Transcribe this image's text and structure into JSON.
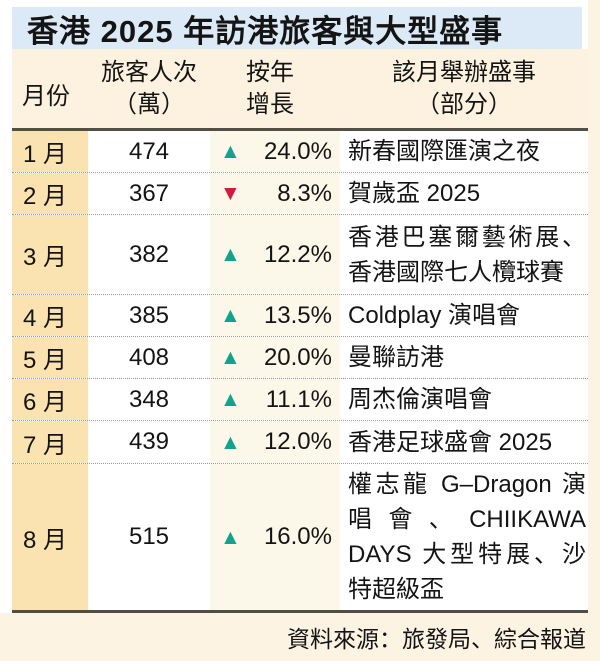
{
  "title": "香港 2025 年訪港旅客與大型盛事",
  "header": {
    "month": "月份",
    "visitors": [
      "旅客人次",
      "（萬）"
    ],
    "growth": [
      "按年",
      "增長"
    ],
    "events": [
      "該月舉辦盛事",
      "（部分）"
    ]
  },
  "rows": [
    {
      "month": "1 月",
      "visitors": "474",
      "arrow": "▲",
      "direction": "up",
      "growth": "24.0%",
      "events": "新春國際匯演之夜"
    },
    {
      "month": "2 月",
      "visitors": "367",
      "arrow": "▼",
      "direction": "down",
      "growth": "8.3%",
      "events": "賀歲盃 2025"
    },
    {
      "month": "3 月",
      "visitors": "382",
      "arrow": "▲",
      "direction": "up",
      "growth": "12.2%",
      "events": "香港巴塞爾藝術展、香港國際七人欖球賽"
    },
    {
      "month": "4 月",
      "visitors": "385",
      "arrow": "▲",
      "direction": "up",
      "growth": "13.5%",
      "events": "Coldplay 演唱會"
    },
    {
      "month": "5 月",
      "visitors": "408",
      "arrow": "▲",
      "direction": "up",
      "growth": "20.0%",
      "events": "曼聯訪港"
    },
    {
      "month": "6 月",
      "visitors": "348",
      "arrow": "▲",
      "direction": "up",
      "growth": "11.1%",
      "events": "周杰倫演唱會"
    },
    {
      "month": "7 月",
      "visitors": "439",
      "arrow": "▲",
      "direction": "up",
      "growth": "12.0%",
      "events": "香港足球盛會 2025"
    },
    {
      "month": "8 月",
      "visitors": "515",
      "arrow": "▲",
      "direction": "up",
      "growth": "16.0%",
      "events": "權志龍 G–Dragon 演唱會、CHIIKAWA DAYS 大型特展、沙特超級盃"
    }
  ],
  "footer": {
    "source": "資料來源：旅發局、綜合報道"
  },
  "colors": {
    "title_bg": "#dbeaf6",
    "header_bg": "#fcf2df",
    "month_col_bg": "#fae3b0",
    "growth_col_bg": "#fbf7e9",
    "footer_bg": "#fcf3e3",
    "up_arrow": "#12a38f",
    "down_arrow": "#d31b3e",
    "rule": "#514f46"
  },
  "chart_data": {
    "type": "table",
    "title": "香港 2025 年訪港旅客與大型盛事",
    "columns": [
      "月份",
      "旅客人次（萬）",
      "按年增長",
      "該月舉辦盛事（部分）"
    ],
    "months": [
      "1月",
      "2月",
      "3月",
      "4月",
      "5月",
      "6月",
      "7月",
      "8月"
    ],
    "visitors_10k": [
      474,
      367,
      382,
      385,
      408,
      348,
      439,
      515
    ],
    "yoy_change_pct": [
      24.0,
      -8.3,
      12.2,
      13.5,
      20.0,
      11.1,
      12.0,
      16.0
    ],
    "events": [
      "新春國際匯演之夜",
      "賀歲盃 2025",
      "香港巴塞爾藝術展、香港國際七人欖球賽",
      "Coldplay 演唱會",
      "曼聯訪港",
      "周杰倫演唱會",
      "香港足球盛會 2025",
      "權志龍 G–Dragon 演唱會、CHIIKAWA DAYS 大型特展、沙特超級盃"
    ],
    "source": "資料來源：旅發局、綜合報道"
  }
}
